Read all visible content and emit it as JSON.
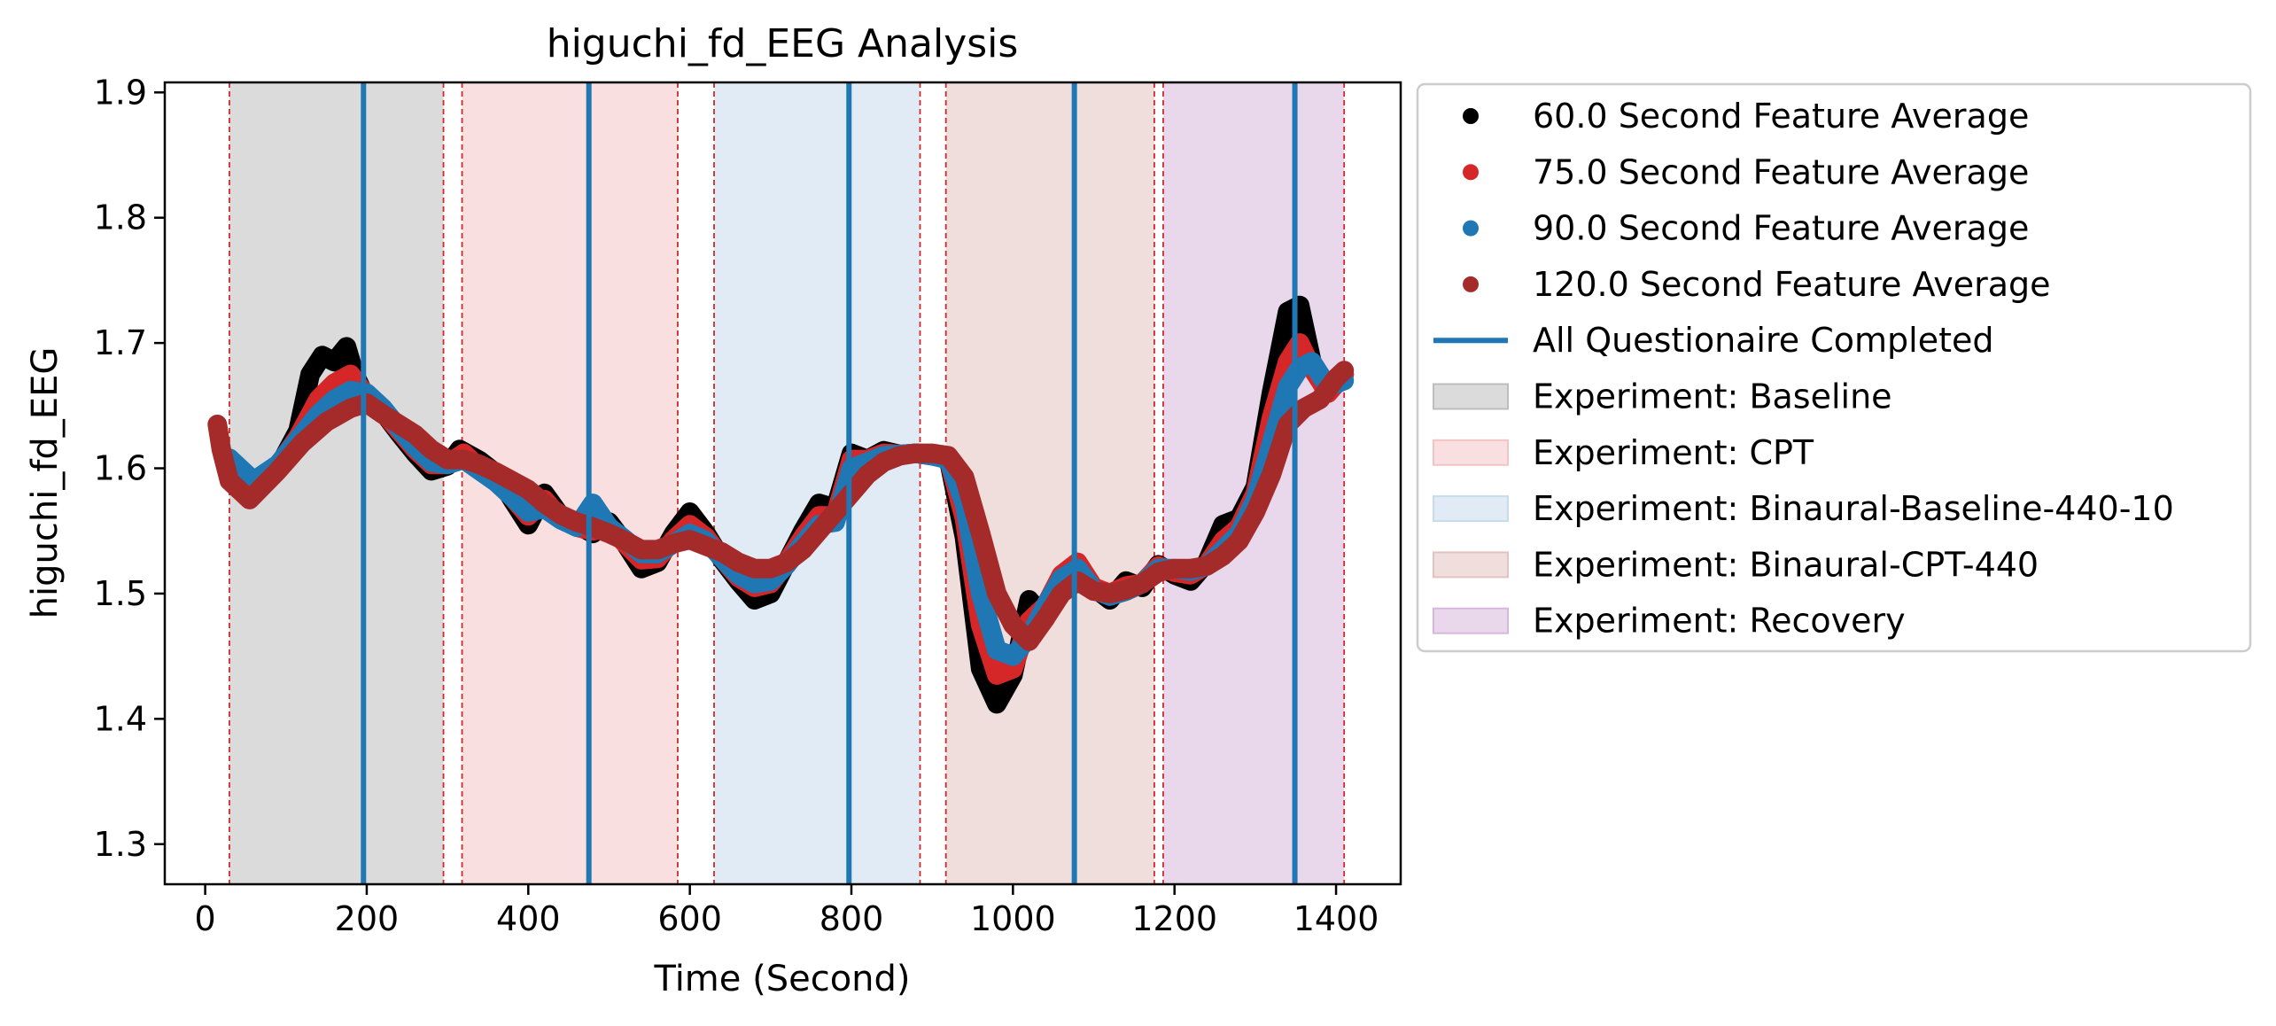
{
  "chart_data": {
    "type": "line",
    "title": "higuchi_fd_EEG Analysis",
    "xlabel": "Time (Second)",
    "ylabel": "higuchi_fd_EEG",
    "xlim": [
      -50,
      1480
    ],
    "ylim": [
      1.268,
      1.908
    ],
    "xticks": [
      0,
      200,
      400,
      600,
      800,
      1000,
      1200,
      1400
    ],
    "yticks": [
      1.3,
      1.4,
      1.5,
      1.6,
      1.7,
      1.8,
      1.9
    ],
    "grid": false,
    "legend_position": "outside-right",
    "segments": [
      {
        "label": "Experiment: Baseline",
        "start": 30,
        "end": 295,
        "color": "#bdbdbd"
      },
      {
        "label": "Experiment: CPT",
        "start": 318,
        "end": 585,
        "color": "#f4c4c5"
      },
      {
        "label": "Experiment: Binaural-Baseline-440-10",
        "start": 630,
        "end": 885,
        "color": "#c6dbec"
      },
      {
        "label": "Experiment: Binaural-CPT-440",
        "start": 917,
        "end": 1175,
        "color": "#e3c3c1"
      },
      {
        "label": "Experiment: Recovery",
        "start": 1186,
        "end": 1410,
        "color": "#d7b8dc"
      }
    ],
    "questionnaire_lines": {
      "label": "All Questionaire Completed",
      "x": [
        196,
        475,
        797,
        1076,
        1349
      ],
      "color": "#1f77b4"
    },
    "series": [
      {
        "name": "60.0 Second Feature Average",
        "color": "#000000",
        "points": [
          [
            30,
            1.603
          ],
          [
            60,
            1.585
          ],
          [
            90,
            1.6
          ],
          [
            115,
            1.63
          ],
          [
            130,
            1.675
          ],
          [
            145,
            1.69
          ],
          [
            160,
            1.685
          ],
          [
            175,
            1.697
          ],
          [
            185,
            1.675
          ],
          [
            200,
            1.655
          ],
          [
            220,
            1.645
          ],
          [
            240,
            1.628
          ],
          [
            260,
            1.612
          ],
          [
            280,
            1.598
          ],
          [
            300,
            1.602
          ],
          [
            315,
            1.615
          ],
          [
            340,
            1.606
          ],
          [
            360,
            1.596
          ],
          [
            380,
            1.575
          ],
          [
            400,
            1.555
          ],
          [
            420,
            1.58
          ],
          [
            440,
            1.562
          ],
          [
            460,
            1.555
          ],
          [
            480,
            1.548
          ],
          [
            500,
            1.557
          ],
          [
            520,
            1.54
          ],
          [
            540,
            1.52
          ],
          [
            560,
            1.525
          ],
          [
            580,
            1.548
          ],
          [
            600,
            1.565
          ],
          [
            620,
            1.548
          ],
          [
            640,
            1.527
          ],
          [
            660,
            1.51
          ],
          [
            680,
            1.495
          ],
          [
            700,
            1.5
          ],
          [
            720,
            1.525
          ],
          [
            740,
            1.55
          ],
          [
            760,
            1.572
          ],
          [
            780,
            1.568
          ],
          [
            800,
            1.612
          ],
          [
            820,
            1.607
          ],
          [
            840,
            1.614
          ],
          [
            860,
            1.611
          ],
          [
            880,
            1.612
          ],
          [
            900,
            1.61
          ],
          [
            920,
            1.608
          ],
          [
            940,
            1.545
          ],
          [
            960,
            1.44
          ],
          [
            980,
            1.412
          ],
          [
            1000,
            1.435
          ],
          [
            1020,
            1.495
          ],
          [
            1040,
            1.48
          ],
          [
            1060,
            1.51
          ],
          [
            1080,
            1.52
          ],
          [
            1100,
            1.505
          ],
          [
            1120,
            1.495
          ],
          [
            1140,
            1.51
          ],
          [
            1160,
            1.505
          ],
          [
            1180,
            1.523
          ],
          [
            1200,
            1.515
          ],
          [
            1220,
            1.51
          ],
          [
            1240,
            1.525
          ],
          [
            1260,
            1.555
          ],
          [
            1280,
            1.56
          ],
          [
            1300,
            1.585
          ],
          [
            1320,
            1.66
          ],
          [
            1340,
            1.725
          ],
          [
            1355,
            1.73
          ],
          [
            1370,
            1.685
          ],
          [
            1390,
            1.66
          ],
          [
            1410,
            1.675
          ]
        ]
      },
      {
        "name": "75.0 Second Feature Average",
        "color": "#d62728",
        "points": [
          [
            30,
            1.605
          ],
          [
            60,
            1.588
          ],
          [
            90,
            1.602
          ],
          [
            115,
            1.625
          ],
          [
            140,
            1.655
          ],
          [
            160,
            1.668
          ],
          [
            180,
            1.675
          ],
          [
            200,
            1.658
          ],
          [
            220,
            1.645
          ],
          [
            240,
            1.63
          ],
          [
            260,
            1.615
          ],
          [
            280,
            1.603
          ],
          [
            300,
            1.603
          ],
          [
            320,
            1.612
          ],
          [
            340,
            1.6
          ],
          [
            360,
            1.59
          ],
          [
            380,
            1.577
          ],
          [
            400,
            1.562
          ],
          [
            420,
            1.575
          ],
          [
            440,
            1.56
          ],
          [
            460,
            1.553
          ],
          [
            480,
            1.55
          ],
          [
            500,
            1.553
          ],
          [
            520,
            1.54
          ],
          [
            540,
            1.527
          ],
          [
            560,
            1.528
          ],
          [
            580,
            1.543
          ],
          [
            600,
            1.555
          ],
          [
            620,
            1.545
          ],
          [
            640,
            1.528
          ],
          [
            660,
            1.513
          ],
          [
            680,
            1.505
          ],
          [
            700,
            1.508
          ],
          [
            720,
            1.525
          ],
          [
            740,
            1.545
          ],
          [
            760,
            1.562
          ],
          [
            780,
            1.562
          ],
          [
            800,
            1.607
          ],
          [
            820,
            1.607
          ],
          [
            840,
            1.612
          ],
          [
            860,
            1.611
          ],
          [
            880,
            1.612
          ],
          [
            900,
            1.61
          ],
          [
            920,
            1.608
          ],
          [
            940,
            1.56
          ],
          [
            960,
            1.475
          ],
          [
            980,
            1.435
          ],
          [
            1000,
            1.44
          ],
          [
            1020,
            1.478
          ],
          [
            1040,
            1.49
          ],
          [
            1060,
            1.515
          ],
          [
            1080,
            1.525
          ],
          [
            1100,
            1.505
          ],
          [
            1120,
            1.5
          ],
          [
            1140,
            1.506
          ],
          [
            1160,
            1.508
          ],
          [
            1180,
            1.522
          ],
          [
            1200,
            1.517
          ],
          [
            1220,
            1.515
          ],
          [
            1240,
            1.523
          ],
          [
            1260,
            1.542
          ],
          [
            1280,
            1.553
          ],
          [
            1300,
            1.58
          ],
          [
            1320,
            1.64
          ],
          [
            1340,
            1.685
          ],
          [
            1355,
            1.7
          ],
          [
            1370,
            1.68
          ],
          [
            1390,
            1.66
          ],
          [
            1410,
            1.675
          ]
        ]
      },
      {
        "name": "90.0 Second Feature Average",
        "color": "#1f77b4",
        "points": [
          [
            30,
            1.608
          ],
          [
            60,
            1.59
          ],
          [
            90,
            1.603
          ],
          [
            115,
            1.623
          ],
          [
            140,
            1.643
          ],
          [
            160,
            1.655
          ],
          [
            180,
            1.662
          ],
          [
            200,
            1.66
          ],
          [
            220,
            1.648
          ],
          [
            240,
            1.632
          ],
          [
            260,
            1.617
          ],
          [
            280,
            1.605
          ],
          [
            300,
            1.603
          ],
          [
            320,
            1.607
          ],
          [
            340,
            1.598
          ],
          [
            360,
            1.589
          ],
          [
            380,
            1.577
          ],
          [
            400,
            1.565
          ],
          [
            420,
            1.568
          ],
          [
            440,
            1.559
          ],
          [
            460,
            1.553
          ],
          [
            480,
            1.572
          ],
          [
            500,
            1.553
          ],
          [
            520,
            1.543
          ],
          [
            540,
            1.532
          ],
          [
            560,
            1.532
          ],
          [
            580,
            1.54
          ],
          [
            600,
            1.548
          ],
          [
            620,
            1.542
          ],
          [
            640,
            1.528
          ],
          [
            660,
            1.515
          ],
          [
            680,
            1.508
          ],
          [
            700,
            1.51
          ],
          [
            720,
            1.523
          ],
          [
            740,
            1.54
          ],
          [
            760,
            1.555
          ],
          [
            780,
            1.557
          ],
          [
            800,
            1.6
          ],
          [
            820,
            1.605
          ],
          [
            840,
            1.61
          ],
          [
            860,
            1.611
          ],
          [
            880,
            1.612
          ],
          [
            900,
            1.61
          ],
          [
            920,
            1.607
          ],
          [
            940,
            1.572
          ],
          [
            960,
            1.5
          ],
          [
            980,
            1.455
          ],
          [
            1000,
            1.45
          ],
          [
            1020,
            1.465
          ],
          [
            1040,
            1.49
          ],
          [
            1060,
            1.512
          ],
          [
            1080,
            1.52
          ],
          [
            1100,
            1.503
          ],
          [
            1120,
            1.498
          ],
          [
            1140,
            1.502
          ],
          [
            1160,
            1.508
          ],
          [
            1180,
            1.52
          ],
          [
            1200,
            1.52
          ],
          [
            1220,
            1.518
          ],
          [
            1240,
            1.522
          ],
          [
            1260,
            1.535
          ],
          [
            1280,
            1.548
          ],
          [
            1300,
            1.575
          ],
          [
            1320,
            1.62
          ],
          [
            1340,
            1.665
          ],
          [
            1355,
            1.68
          ],
          [
            1370,
            1.685
          ],
          [
            1390,
            1.665
          ],
          [
            1410,
            1.67
          ]
        ]
      },
      {
        "name": "120.0 Second Feature Average",
        "color": "#a52a2a",
        "points": [
          [
            15,
            1.635
          ],
          [
            20,
            1.615
          ],
          [
            30,
            1.59
          ],
          [
            55,
            1.575
          ],
          [
            90,
            1.598
          ],
          [
            120,
            1.62
          ],
          [
            150,
            1.637
          ],
          [
            180,
            1.648
          ],
          [
            200,
            1.652
          ],
          [
            220,
            1.643
          ],
          [
            240,
            1.635
          ],
          [
            260,
            1.627
          ],
          [
            280,
            1.615
          ],
          [
            300,
            1.607
          ],
          [
            320,
            1.607
          ],
          [
            340,
            1.603
          ],
          [
            360,
            1.597
          ],
          [
            380,
            1.59
          ],
          [
            400,
            1.583
          ],
          [
            420,
            1.572
          ],
          [
            440,
            1.563
          ],
          [
            460,
            1.557
          ],
          [
            480,
            1.553
          ],
          [
            500,
            1.548
          ],
          [
            520,
            1.542
          ],
          [
            540,
            1.535
          ],
          [
            560,
            1.535
          ],
          [
            580,
            1.54
          ],
          [
            600,
            1.543
          ],
          [
            620,
            1.538
          ],
          [
            640,
            1.533
          ],
          [
            660,
            1.525
          ],
          [
            680,
            1.52
          ],
          [
            700,
            1.52
          ],
          [
            720,
            1.525
          ],
          [
            740,
            1.535
          ],
          [
            760,
            1.55
          ],
          [
            780,
            1.565
          ],
          [
            800,
            1.58
          ],
          [
            820,
            1.595
          ],
          [
            840,
            1.605
          ],
          [
            860,
            1.61
          ],
          [
            880,
            1.612
          ],
          [
            900,
            1.612
          ],
          [
            920,
            1.61
          ],
          [
            940,
            1.593
          ],
          [
            960,
            1.548
          ],
          [
            980,
            1.5
          ],
          [
            1000,
            1.475
          ],
          [
            1020,
            1.462
          ],
          [
            1040,
            1.48
          ],
          [
            1060,
            1.5
          ],
          [
            1080,
            1.51
          ],
          [
            1100,
            1.502
          ],
          [
            1120,
            1.5
          ],
          [
            1140,
            1.503
          ],
          [
            1160,
            1.508
          ],
          [
            1180,
            1.517
          ],
          [
            1200,
            1.52
          ],
          [
            1220,
            1.52
          ],
          [
            1240,
            1.522
          ],
          [
            1260,
            1.53
          ],
          [
            1280,
            1.542
          ],
          [
            1300,
            1.565
          ],
          [
            1320,
            1.595
          ],
          [
            1340,
            1.635
          ],
          [
            1360,
            1.648
          ],
          [
            1380,
            1.655
          ],
          [
            1400,
            1.672
          ],
          [
            1410,
            1.678
          ]
        ]
      }
    ]
  }
}
